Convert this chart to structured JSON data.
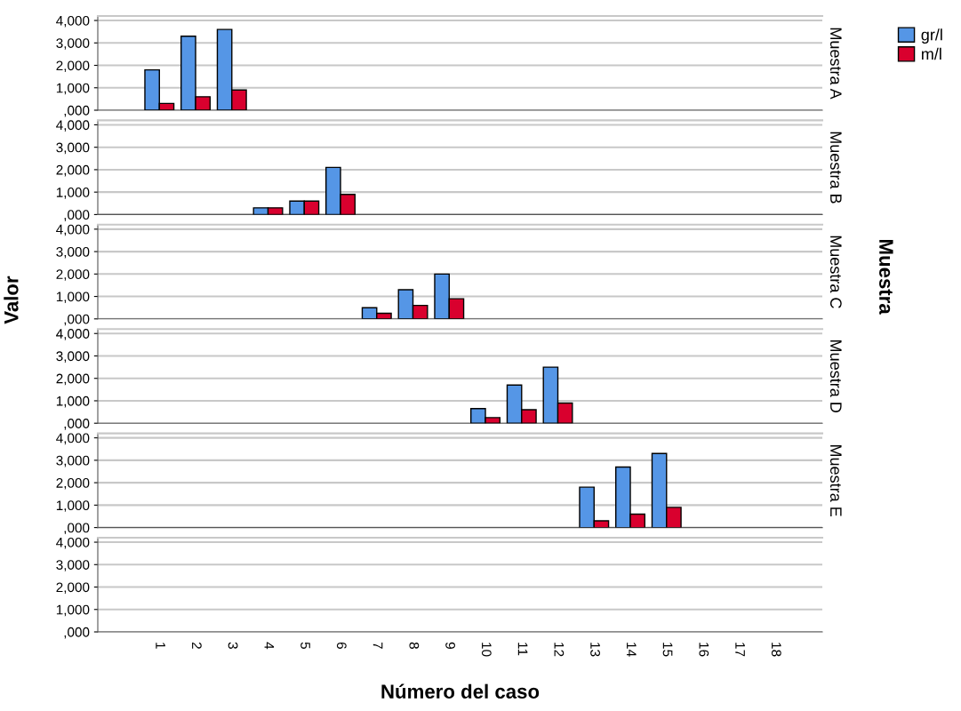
{
  "chart_data": [
    {
      "type": "bar",
      "y2label": "Muestra A",
      "categories": [
        "1",
        "2",
        "3",
        "4",
        "5",
        "6",
        "7",
        "8",
        "9",
        "10",
        "11",
        "12",
        "13",
        "14",
        "15",
        "16",
        "17",
        "18"
      ],
      "legend": "right",
      "grid": "y",
      "tick_labels": "y",
      "ylim": [
        0,
        4200
      ],
      "yticks": [
        {
          "value": 0,
          "label": ",000"
        },
        {
          "value": 1000,
          "label": "1,000"
        },
        {
          "value": 2000,
          "label": "2,000"
        },
        {
          "value": 3000,
          "label": "3,000"
        },
        {
          "value": 4000,
          "label": "4,000"
        }
      ],
      "series": [
        {
          "name": "gr/l",
          "color": "#5596e6",
          "values": [
            1800,
            3300,
            3600,
            null,
            null,
            null,
            null,
            null,
            null,
            null,
            null,
            null,
            null,
            null,
            null,
            null,
            null,
            null
          ]
        },
        {
          "name": "m/l",
          "color": "#d9002e",
          "values": [
            300,
            600,
            900,
            null,
            null,
            null,
            null,
            null,
            null,
            null,
            null,
            null,
            null,
            null,
            null,
            null,
            null,
            null
          ]
        }
      ]
    },
    {
      "type": "bar",
      "y2label": "Muestra B",
      "categories": [
        "1",
        "2",
        "3",
        "4",
        "5",
        "6",
        "7",
        "8",
        "9",
        "10",
        "11",
        "12",
        "13",
        "14",
        "15",
        "16",
        "17",
        "18"
      ],
      "grid": "y",
      "tick_labels": "y",
      "ylim": [
        0,
        4200
      ],
      "yticks": [
        {
          "value": 0,
          "label": ",000"
        },
        {
          "value": 1000,
          "label": "1,000"
        },
        {
          "value": 2000,
          "label": "2,000"
        },
        {
          "value": 3000,
          "label": "3,000"
        },
        {
          "value": 4000,
          "label": "4,000"
        }
      ],
      "series": [
        {
          "color": "#5596e6",
          "values": [
            null,
            null,
            null,
            300,
            600,
            2100,
            null,
            null,
            null,
            null,
            null,
            null,
            null,
            null,
            null,
            null,
            null,
            null
          ]
        },
        {
          "color": "#d9002e",
          "values": [
            null,
            null,
            null,
            300,
            600,
            900,
            null,
            null,
            null,
            null,
            null,
            null,
            null,
            null,
            null,
            null,
            null,
            null
          ]
        }
      ]
    },
    {
      "type": "bar",
      "y2label": "Muestra C",
      "ylabel": "Valor",
      "annotations": [
        "Muestra"
      ],
      "categories": [
        "1",
        "2",
        "3",
        "4",
        "5",
        "6",
        "7",
        "8",
        "9",
        "10",
        "11",
        "12",
        "13",
        "14",
        "15",
        "16",
        "17",
        "18"
      ],
      "grid": "y",
      "tick_labels": "y",
      "ylim": [
        0,
        4200
      ],
      "yticks": [
        {
          "value": 0,
          "label": ",000"
        },
        {
          "value": 1000,
          "label": "1,000"
        },
        {
          "value": 2000,
          "label": "2,000"
        },
        {
          "value": 3000,
          "label": "3,000"
        },
        {
          "value": 4000,
          "label": "4,000"
        }
      ],
      "series": [
        {
          "color": "#5596e6",
          "values": [
            null,
            null,
            null,
            null,
            null,
            null,
            500,
            1300,
            2000,
            null,
            null,
            null,
            null,
            null,
            null,
            null,
            null,
            null
          ]
        },
        {
          "color": "#d9002e",
          "values": [
            null,
            null,
            null,
            null,
            null,
            null,
            250,
            600,
            900,
            null,
            null,
            null,
            null,
            null,
            null,
            null,
            null,
            null
          ]
        }
      ]
    },
    {
      "type": "bar",
      "y2label": "Muestra D",
      "categories": [
        "1",
        "2",
        "3",
        "4",
        "5",
        "6",
        "7",
        "8",
        "9",
        "10",
        "11",
        "12",
        "13",
        "14",
        "15",
        "16",
        "17",
        "18"
      ],
      "grid": "y",
      "tick_labels": "y",
      "ylim": [
        0,
        4200
      ],
      "yticks": [
        {
          "value": 0,
          "label": ",000"
        },
        {
          "value": 1000,
          "label": "1,000"
        },
        {
          "value": 2000,
          "label": "2,000"
        },
        {
          "value": 3000,
          "label": "3,000"
        },
        {
          "value": 4000,
          "label": "4,000"
        }
      ],
      "series": [
        {
          "color": "#5596e6",
          "values": [
            null,
            null,
            null,
            null,
            null,
            null,
            null,
            null,
            null,
            650,
            1700,
            2500,
            null,
            null,
            null,
            null,
            null,
            null
          ]
        },
        {
          "color": "#d9002e",
          "values": [
            null,
            null,
            null,
            null,
            null,
            null,
            null,
            null,
            null,
            250,
            600,
            900,
            null,
            null,
            null,
            null,
            null,
            null
          ]
        }
      ]
    },
    {
      "type": "bar",
      "y2label": "Muestra E",
      "categories": [
        "1",
        "2",
        "3",
        "4",
        "5",
        "6",
        "7",
        "8",
        "9",
        "10",
        "11",
        "12",
        "13",
        "14",
        "15",
        "16",
        "17",
        "18"
      ],
      "grid": "y",
      "tick_labels": "y",
      "ylim": [
        0,
        4200
      ],
      "yticks": [
        {
          "value": 0,
          "label": ",000"
        },
        {
          "value": 1000,
          "label": "1,000"
        },
        {
          "value": 2000,
          "label": "2,000"
        },
        {
          "value": 3000,
          "label": "3,000"
        },
        {
          "value": 4000,
          "label": "4,000"
        }
      ],
      "series": [
        {
          "color": "#5596e6",
          "values": [
            null,
            null,
            null,
            null,
            null,
            null,
            null,
            null,
            null,
            null,
            null,
            null,
            1800,
            2700,
            3300,
            null,
            null,
            null
          ]
        },
        {
          "color": "#d9002e",
          "values": [
            null,
            null,
            null,
            null,
            null,
            null,
            null,
            null,
            null,
            null,
            null,
            null,
            300,
            600,
            900,
            null,
            null,
            null
          ]
        }
      ]
    },
    {
      "type": "bar",
      "xlabel": "Número del caso",
      "categories": [
        "1",
        "2",
        "3",
        "4",
        "5",
        "6",
        "7",
        "8",
        "9",
        "10",
        "11",
        "12",
        "13",
        "14",
        "15",
        "16",
        "17",
        "18"
      ],
      "grid": "y",
      "ylim": [
        0,
        4200
      ],
      "yticks": [
        {
          "value": 0,
          "label": ",000"
        },
        {
          "value": 1000,
          "label": "1,000"
        },
        {
          "value": 2000,
          "label": "2,000"
        },
        {
          "value": 3000,
          "label": "3,000"
        },
        {
          "value": 4000,
          "label": "4,000"
        }
      ],
      "series": [
        {
          "color": "#5596e6",
          "values": [
            null,
            null,
            null,
            null,
            null,
            null,
            null,
            null,
            null,
            null,
            null,
            null,
            null,
            null,
            null,
            null,
            null,
            null
          ]
        },
        {
          "color": "#d9002e",
          "values": [
            null,
            null,
            null,
            null,
            null,
            null,
            null,
            null,
            null,
            null,
            null,
            null,
            null,
            null,
            null,
            null,
            null,
            null
          ]
        }
      ]
    }
  ]
}
